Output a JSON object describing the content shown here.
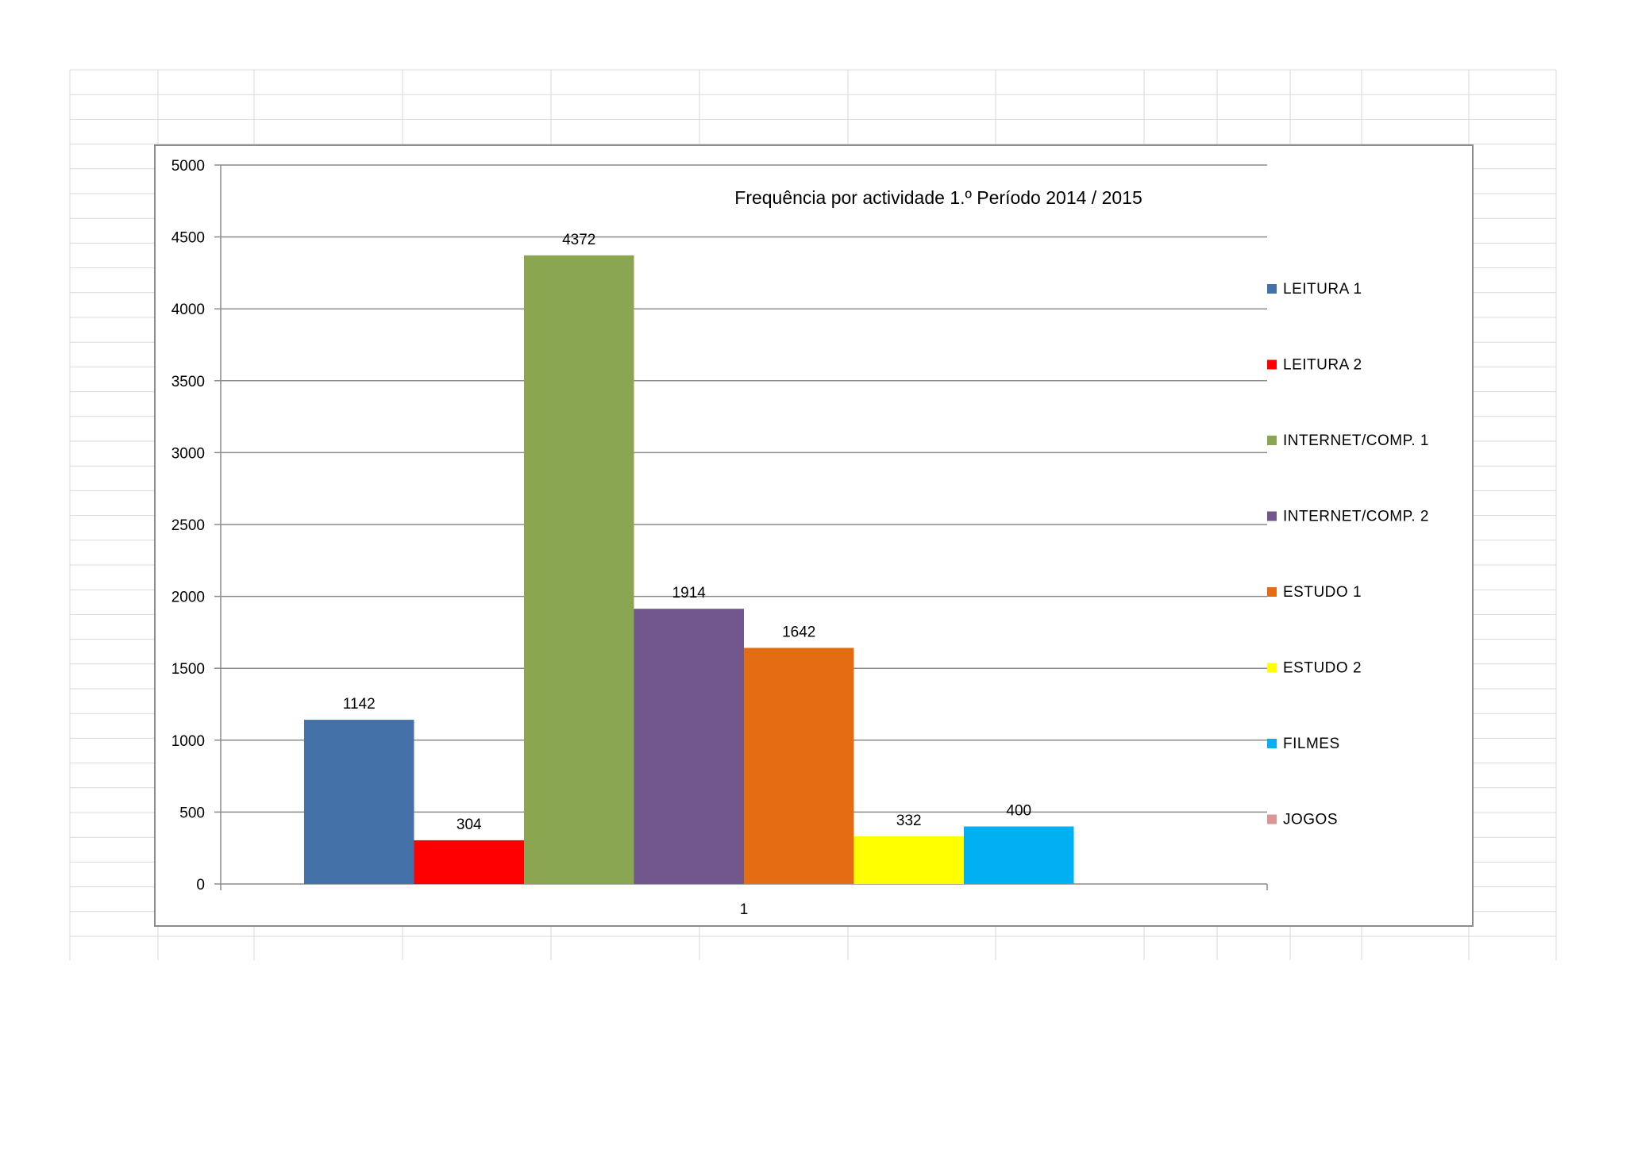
{
  "chart_data": {
    "type": "bar",
    "title": "Frequência por actividade 1.º Período 2014 / 2015",
    "categories": [
      "1"
    ],
    "ylim": [
      0,
      5000
    ],
    "yticks": [
      0,
      500,
      1000,
      1500,
      2000,
      2500,
      3000,
      3500,
      4000,
      4500,
      5000
    ],
    "grid": true,
    "legend_position": "right",
    "series": [
      {
        "name": "LEITURA 1",
        "values": [
          1142
        ],
        "color": "#4472A8"
      },
      {
        "name": "LEITURA 2",
        "values": [
          304
        ],
        "color": "#FF0000"
      },
      {
        "name": "INTERNET/COMP. 1",
        "values": [
          4372
        ],
        "color": "#8BA651"
      },
      {
        "name": "INTERNET/COMP. 2",
        "values": [
          1914
        ],
        "color": "#72578C"
      },
      {
        "name": "ESTUDO 1",
        "values": [
          1642
        ],
        "color": "#E46C12"
      },
      {
        "name": "ESTUDO 2",
        "values": [
          332
        ],
        "color": "#FFFF00"
      },
      {
        "name": "FILMES",
        "values": [
          400
        ],
        "color": "#00B0F0"
      },
      {
        "name": "JOGOS",
        "values": [
          null
        ],
        "color": "#D99694"
      }
    ]
  }
}
